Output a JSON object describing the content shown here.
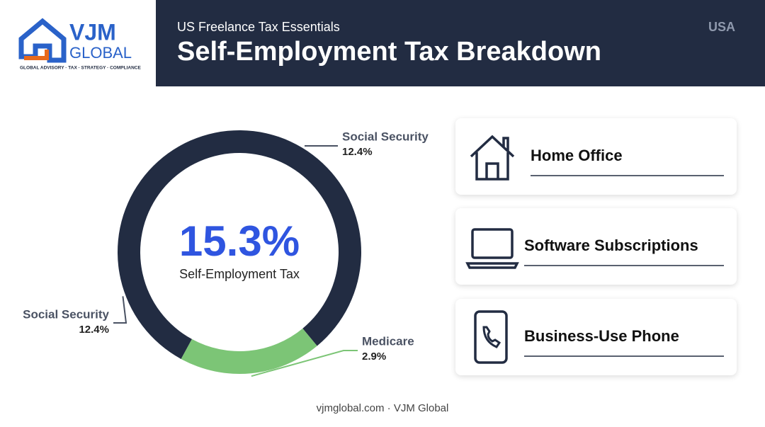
{
  "logo": {
    "name": "VJM",
    "sub": "GLOBAL",
    "tagline": "GLOBAL ADVISORY · TAX · STRATEGY · COMPLIANCE"
  },
  "header": {
    "subtitle": "US Freelance Tax Essentials",
    "title": "Self-Employment Tax Breakdown",
    "country": "USA"
  },
  "chart_data": {
    "type": "donut",
    "center_value": "15.3%",
    "center_label": "Self-Employment Tax",
    "categories": [
      "Social Security",
      "Medicare"
    ],
    "values": [
      12.4,
      2.9
    ],
    "value_labels": [
      "12.4%",
      "2.9%"
    ],
    "colors": [
      "#222c42",
      "#7cc576"
    ],
    "annotations": [
      {
        "name": "Social Security",
        "value_label": "12.4%"
      }
    ]
  },
  "cards": [
    "Home Office",
    "Software Subscriptions",
    "Business-Use Phone"
  ],
  "footer": "vjmglobal.com · VJM Global"
}
